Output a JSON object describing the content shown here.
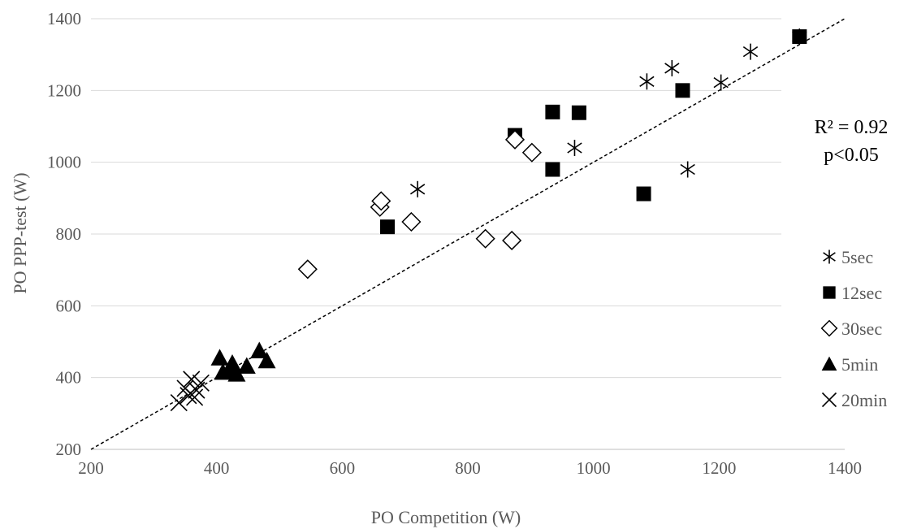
{
  "chart_data": {
    "type": "scatter",
    "title": "",
    "xlabel": "PO Competition (W)",
    "ylabel": "PO PPP-test (W)",
    "xlim": [
      200,
      1400
    ],
    "ylim": [
      200,
      1400
    ],
    "x_ticks": [
      200,
      400,
      600,
      800,
      1000,
      1200,
      1400
    ],
    "y_ticks": [
      200,
      400,
      600,
      800,
      1000,
      1200,
      1400
    ],
    "grid": "horizontal",
    "legend_position": "right",
    "annotation": [
      "R² = 0.92",
      "p<0.05"
    ],
    "trendline": {
      "style": "dashed",
      "x": [
        200,
        1400
      ],
      "y": [
        200,
        1400
      ]
    },
    "series": [
      {
        "name": "5sec",
        "marker": "asterisk",
        "color": "#000000",
        "x": [
          720,
          970,
          1085,
          1125,
          1150,
          1203,
          1250,
          1328
        ],
        "y": [
          925,
          1040,
          1225,
          1262,
          980,
          1222,
          1308,
          1350
        ]
      },
      {
        "name": "12sec",
        "marker": "square",
        "color": "#000000",
        "x": [
          672,
          875,
          935,
          935,
          977,
          1080,
          1142,
          1328
        ],
        "y": [
          820,
          1075,
          1140,
          980,
          1138,
          912,
          1200,
          1350
        ]
      },
      {
        "name": "30sec",
        "marker": "diamond-open",
        "color": "#000000",
        "x": [
          545,
          660,
          662,
          710,
          828,
          870,
          875,
          902
        ],
        "y": [
          702,
          875,
          892,
          834,
          787,
          782,
          1063,
          1027
        ]
      },
      {
        "name": "5min",
        "marker": "triangle",
        "color": "#000000",
        "x": [
          405,
          410,
          420,
          425,
          432,
          448,
          468,
          480
        ],
        "y": [
          455,
          415,
          420,
          440,
          410,
          432,
          475,
          447
        ]
      },
      {
        "name": "20min",
        "marker": "x",
        "color": "#000000",
        "x": [
          340,
          350,
          355,
          360,
          365,
          368,
          375
        ],
        "y": [
          330,
          370,
          350,
          395,
          345,
          365,
          385
        ]
      }
    ]
  }
}
